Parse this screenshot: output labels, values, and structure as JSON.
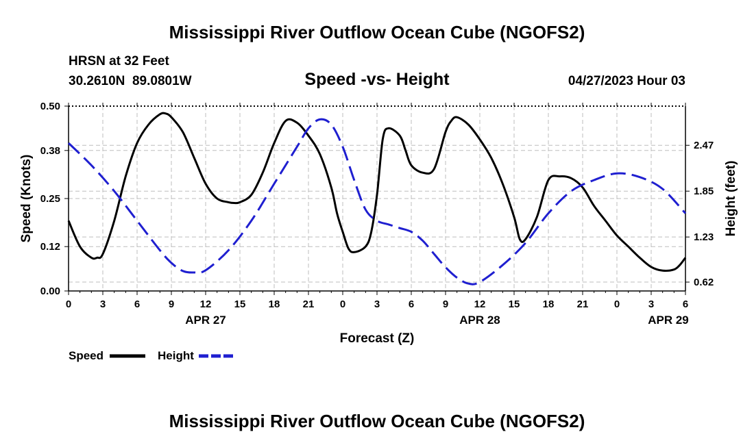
{
  "header": {
    "main_title": "Mississippi River Outflow Ocean Cube (NGOFS2)",
    "station_line": "HRSN at 32 Feet",
    "location_line": "30.2610N  89.0801W",
    "chart_title": "Speed -vs- Height",
    "datetime_line": "04/27/2023 Hour 03",
    "footer_title": "Mississippi River Outflow Ocean Cube (NGOFS2)"
  },
  "legend": {
    "speed_label": "Speed",
    "height_label": "Height"
  },
  "colors": {
    "speed": "#000000",
    "height": "#1f1fd0",
    "grid": "#bdbdbd"
  },
  "chart_data": {
    "type": "line",
    "xlabel": "Forecast (Z)",
    "ylabel_left": "Speed (Knots)",
    "ylabel_right": "Height (feet)",
    "x_range_hours": [
      0,
      54
    ],
    "x_tick_hours": [
      0,
      3,
      6,
      9,
      12,
      15,
      18,
      21,
      24,
      27,
      30,
      33,
      36,
      39,
      42,
      45,
      48,
      51,
      54
    ],
    "x_tick_labels": [
      "0",
      "3",
      "6",
      "9",
      "12",
      "15",
      "18",
      "21",
      "0",
      "3",
      "6",
      "9",
      "12",
      "15",
      "18",
      "21",
      "0",
      "3",
      "6"
    ],
    "date_labels": [
      {
        "hour": 12,
        "label": "APR 27"
      },
      {
        "hour": 36,
        "label": "APR 28"
      },
      {
        "hour": 52.5,
        "label": "APR 29"
      }
    ],
    "left_axis": {
      "range": [
        0,
        0.5
      ],
      "ticks": [
        0.0,
        0.12,
        0.25,
        0.38,
        0.5
      ],
      "tick_labels": [
        "0.00",
        "0.12",
        "0.25",
        "0.38",
        "0.50"
      ]
    },
    "right_axis": {
      "range": [
        0.5,
        3.0
      ],
      "ticks": [
        0.62,
        1.23,
        1.85,
        2.47
      ],
      "tick_labels": [
        "0.62",
        "1.23",
        "1.85",
        "2.47"
      ]
    },
    "series": [
      {
        "name": "Speed",
        "axis": "left",
        "style": "solid",
        "x": [
          0,
          1,
          2,
          2.5,
          3,
          4,
          5,
          6,
          7,
          8,
          8.5,
          9,
          10,
          11,
          12,
          13,
          14,
          14.5,
          15,
          16,
          17,
          18,
          19,
          20,
          21,
          22,
          23,
          23.5,
          24,
          24.5,
          25,
          26,
          26.5,
          27,
          27.5,
          28,
          29,
          29.5,
          30,
          31,
          32,
          33,
          33.5,
          34,
          35,
          36,
          37,
          38,
          39,
          39.5,
          40,
          41,
          42,
          43,
          44,
          45,
          46,
          47,
          48,
          49,
          50,
          51,
          52,
          53,
          53.5,
          54
        ],
        "y": [
          0.19,
          0.12,
          0.09,
          0.09,
          0.1,
          0.19,
          0.31,
          0.4,
          0.45,
          0.478,
          0.48,
          0.47,
          0.43,
          0.36,
          0.29,
          0.25,
          0.24,
          0.238,
          0.24,
          0.26,
          0.32,
          0.4,
          0.46,
          0.455,
          0.42,
          0.37,
          0.28,
          0.21,
          0.16,
          0.115,
          0.105,
          0.12,
          0.16,
          0.26,
          0.41,
          0.44,
          0.42,
          0.38,
          0.34,
          0.32,
          0.33,
          0.43,
          0.46,
          0.47,
          0.45,
          0.41,
          0.36,
          0.29,
          0.2,
          0.14,
          0.14,
          0.2,
          0.3,
          0.31,
          0.305,
          0.28,
          0.23,
          0.19,
          0.15,
          0.12,
          0.09,
          0.065,
          0.055,
          0.058,
          0.07,
          0.09
        ]
      },
      {
        "name": "Height",
        "axis": "right",
        "style": "dashed",
        "x": [
          0,
          2,
          4,
          6,
          8,
          9,
          10,
          11,
          12,
          14,
          16,
          18,
          20,
          21,
          22,
          23,
          24,
          25,
          26,
          27,
          28,
          29,
          30,
          31,
          32,
          33,
          34,
          35,
          36,
          38,
          40,
          42,
          44,
          46,
          48,
          50,
          52,
          54
        ],
        "y": [
          2.5,
          2.2,
          1.85,
          1.45,
          1.05,
          0.88,
          0.77,
          0.75,
          0.78,
          1.05,
          1.45,
          1.95,
          2.45,
          2.7,
          2.82,
          2.75,
          2.45,
          2.0,
          1.6,
          1.45,
          1.4,
          1.35,
          1.3,
          1.18,
          1.0,
          0.82,
          0.68,
          0.6,
          0.62,
          0.85,
          1.15,
          1.55,
          1.85,
          2.0,
          2.09,
          2.04,
          1.88,
          1.55
        ]
      }
    ]
  }
}
